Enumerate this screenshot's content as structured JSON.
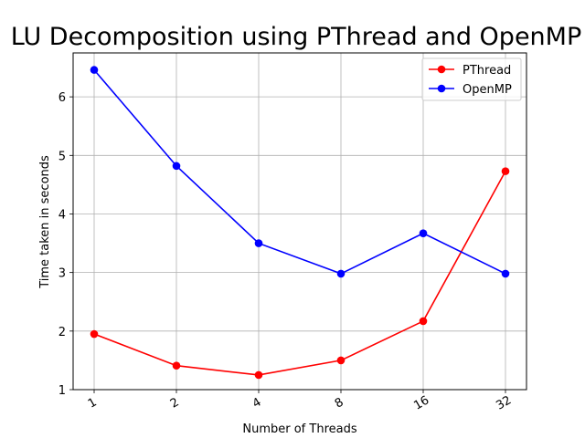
{
  "chart_data": {
    "type": "line",
    "title": "LU Decomposition using PThread and OpenMP",
    "xlabel": "Number of Threads",
    "ylabel": "Time taken in seconds",
    "categories": [
      "1",
      "2",
      "4",
      "8",
      "16",
      "32"
    ],
    "ylim": [
      1,
      6.75
    ],
    "yticks": [
      1,
      2,
      3,
      4,
      5,
      6
    ],
    "grid": true,
    "legend_position": "top-right",
    "series": [
      {
        "name": "PThread",
        "color": "#ff0000",
        "marker": "circle",
        "values": [
          1.95,
          1.41,
          1.25,
          1.5,
          2.17,
          4.73
        ]
      },
      {
        "name": "OpenMP",
        "color": "#0000ff",
        "marker": "circle",
        "values": [
          6.46,
          4.82,
          3.5,
          2.98,
          3.67,
          2.98
        ]
      }
    ]
  }
}
